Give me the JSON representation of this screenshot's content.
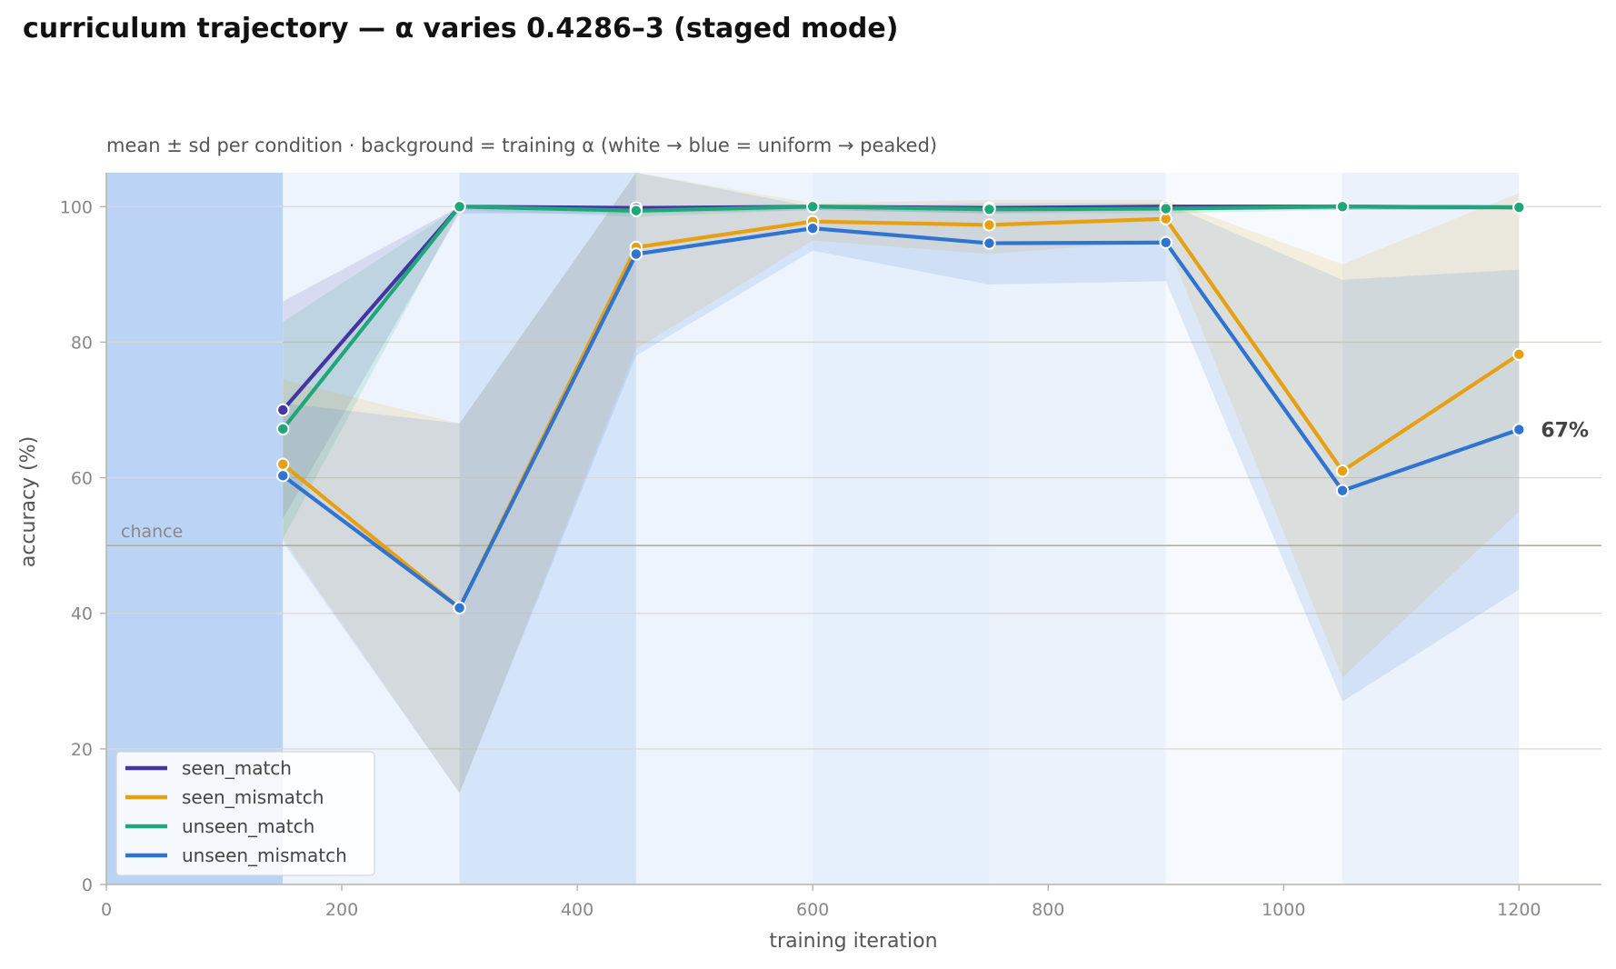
{
  "chart_data": {
    "type": "line",
    "title": "curriculum trajectory — α varies 0.4286–3 (staged mode)",
    "subtitle": "mean ± sd per condition · background = training α (white → blue = uniform → peaked)",
    "xlabel": "training iteration",
    "ylabel": "accuracy (%)",
    "xlim": [
      0,
      1270
    ],
    "ylim": [
      0,
      105
    ],
    "x_ticks": [
      0,
      200,
      400,
      600,
      800,
      1000,
      1200
    ],
    "y_ticks": [
      0,
      20,
      40,
      60,
      80,
      100
    ],
    "grid": "horizontal",
    "legend_position": "lower-left",
    "reference_line": {
      "label": "chance",
      "value": 50
    },
    "end_label": "67%",
    "background_alpha_bands": [
      {
        "x_start": 0,
        "x_end": 150,
        "intensity": 0.95
      },
      {
        "x_start": 150,
        "x_end": 300,
        "intensity": 0.25
      },
      {
        "x_start": 300,
        "x_end": 450,
        "intensity": 0.6
      },
      {
        "x_start": 450,
        "x_end": 600,
        "intensity": 0.25
      },
      {
        "x_start": 600,
        "x_end": 750,
        "intensity": 0.35
      },
      {
        "x_start": 750,
        "x_end": 900,
        "intensity": 0.28
      },
      {
        "x_start": 900,
        "x_end": 1050,
        "intensity": 0.12
      },
      {
        "x_start": 1050,
        "x_end": 1200,
        "intensity": 0.28
      }
    ],
    "x": [
      150,
      300,
      450,
      600,
      750,
      900,
      1050,
      1200
    ],
    "series": [
      {
        "name": "seen_match",
        "color": "#4535a3",
        "values": [
          70,
          100,
          99.8,
          100,
          99.8,
          100,
          100,
          99.9
        ],
        "lower": [
          54,
          99,
          99,
          99.5,
          99,
          99.5,
          99.5,
          99.5
        ],
        "upper": [
          86,
          100,
          100,
          100,
          100,
          100,
          100,
          100
        ]
      },
      {
        "name": "seen_mismatch",
        "color": "#e8a013",
        "values": [
          62,
          40.8,
          94,
          97.8,
          97.3,
          98.2,
          61,
          78.2
        ],
        "lower": [
          51,
          13.5,
          79,
          95,
          93,
          95,
          30.5,
          55
        ],
        "upper": [
          74.5,
          68,
          109,
          100.5,
          101,
          101,
          91.5,
          102
        ]
      },
      {
        "name": "unseen_match",
        "color": "#1fa77a",
        "values": [
          67.2,
          100,
          99.4,
          100,
          99.6,
          99.7,
          100,
          99.9
        ],
        "lower": [
          51,
          99.5,
          98.5,
          99.5,
          99,
          99,
          99.5,
          99.5
        ],
        "upper": [
          83,
          100,
          100,
          100,
          100,
          100,
          100,
          100
        ]
      },
      {
        "name": "unseen_mismatch",
        "color": "#2f74d0",
        "values": [
          60.3,
          40.8,
          93,
          96.8,
          94.6,
          94.7,
          58.1,
          67.1
        ],
        "lower": [
          50.5,
          13.5,
          78,
          93.5,
          88.5,
          89,
          27,
          43.5
        ],
        "upper": [
          71,
          68,
          108,
          100,
          100.5,
          100.5,
          89.2,
          90.7
        ]
      }
    ]
  }
}
